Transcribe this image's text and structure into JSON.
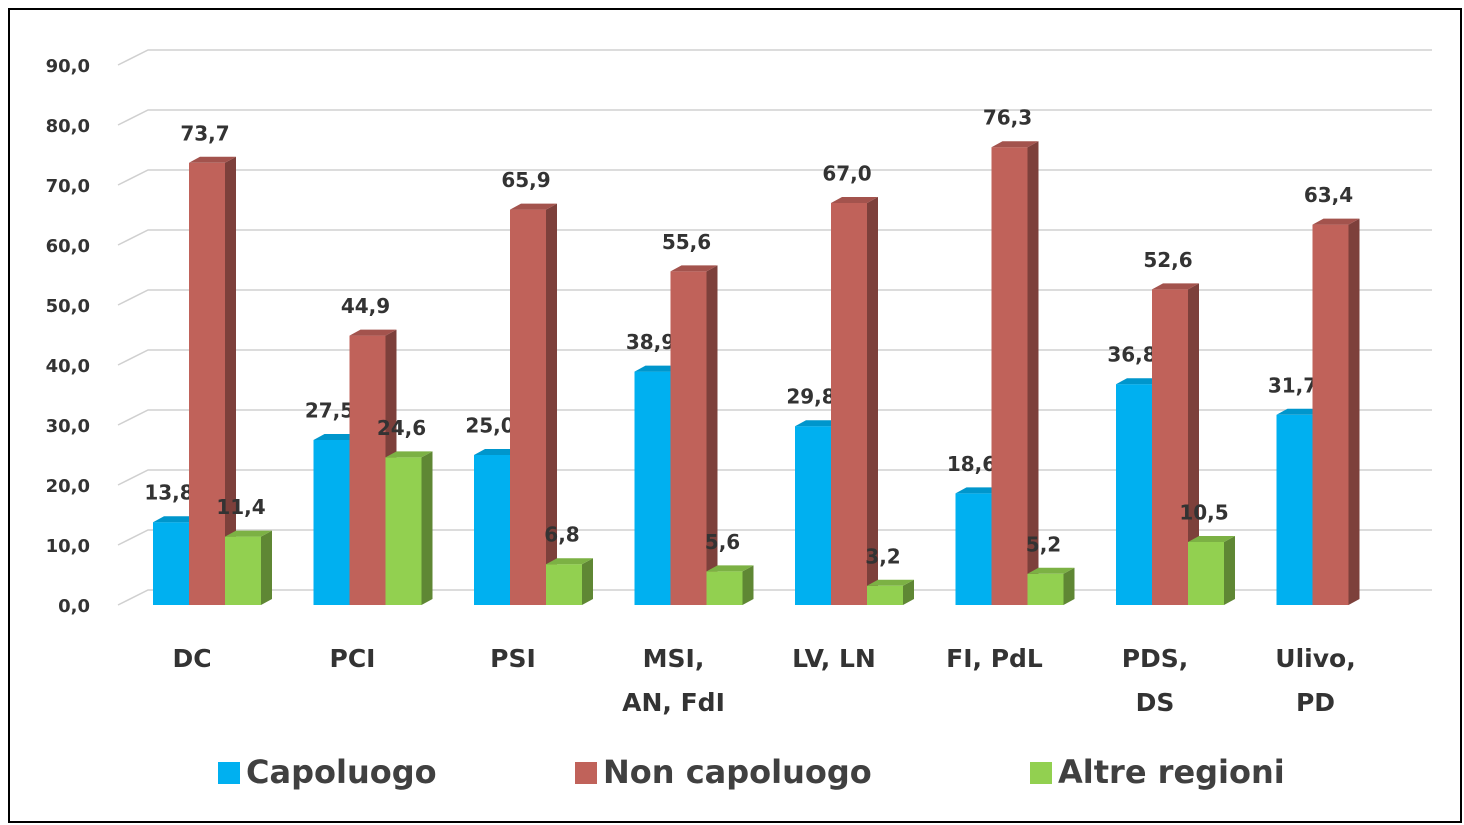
{
  "chart_data": {
    "type": "bar",
    "categories": [
      "DC",
      "PCI",
      "PSI",
      "MSI, AN, FdI",
      "LV, LN",
      "FI, PdL",
      "PDS, DS",
      "Ulivo, PD"
    ],
    "series": [
      {
        "name": "Capoluogo",
        "color": "#00b0f0",
        "values": [
          13.8,
          27.5,
          25.0,
          38.9,
          29.8,
          18.6,
          36.8,
          31.7
        ],
        "value_labels": [
          "13,8",
          "27,5",
          "25,0",
          "38,9",
          "29,8",
          "18,6",
          "36,8",
          "31,7"
        ]
      },
      {
        "name": "Non capoluogo",
        "color": "#c0625a",
        "values": [
          73.7,
          44.9,
          65.9,
          55.6,
          67.0,
          76.3,
          52.6,
          63.4
        ],
        "value_labels": [
          "73,7",
          "44,9",
          "65,9",
          "55,6",
          "67,0",
          "76,3",
          "52,6",
          "63,4"
        ]
      },
      {
        "name": "Altre regioni",
        "color": "#92d050",
        "values": [
          11.4,
          24.6,
          6.8,
          5.6,
          3.2,
          5.2,
          10.5,
          null
        ],
        "value_labels": [
          "11,4",
          "24,6",
          "6,8",
          "5,6",
          "3,2",
          "5,2",
          "10,5",
          null
        ]
      }
    ],
    "ylim": [
      0,
      90
    ],
    "yticks": [
      {
        "value": 0,
        "label": "0,0"
      },
      {
        "value": 10,
        "label": "10,0"
      },
      {
        "value": 20,
        "label": "20,0"
      },
      {
        "value": 30,
        "label": "30,0"
      },
      {
        "value": 40,
        "label": "40,0"
      },
      {
        "value": 50,
        "label": "50,0"
      },
      {
        "value": 60,
        "label": "60,0"
      },
      {
        "value": 70,
        "label": "70,0"
      },
      {
        "value": 80,
        "label": "80,0"
      },
      {
        "value": 90,
        "label": "90,0"
      }
    ],
    "grid": true,
    "legend": "bottom"
  }
}
